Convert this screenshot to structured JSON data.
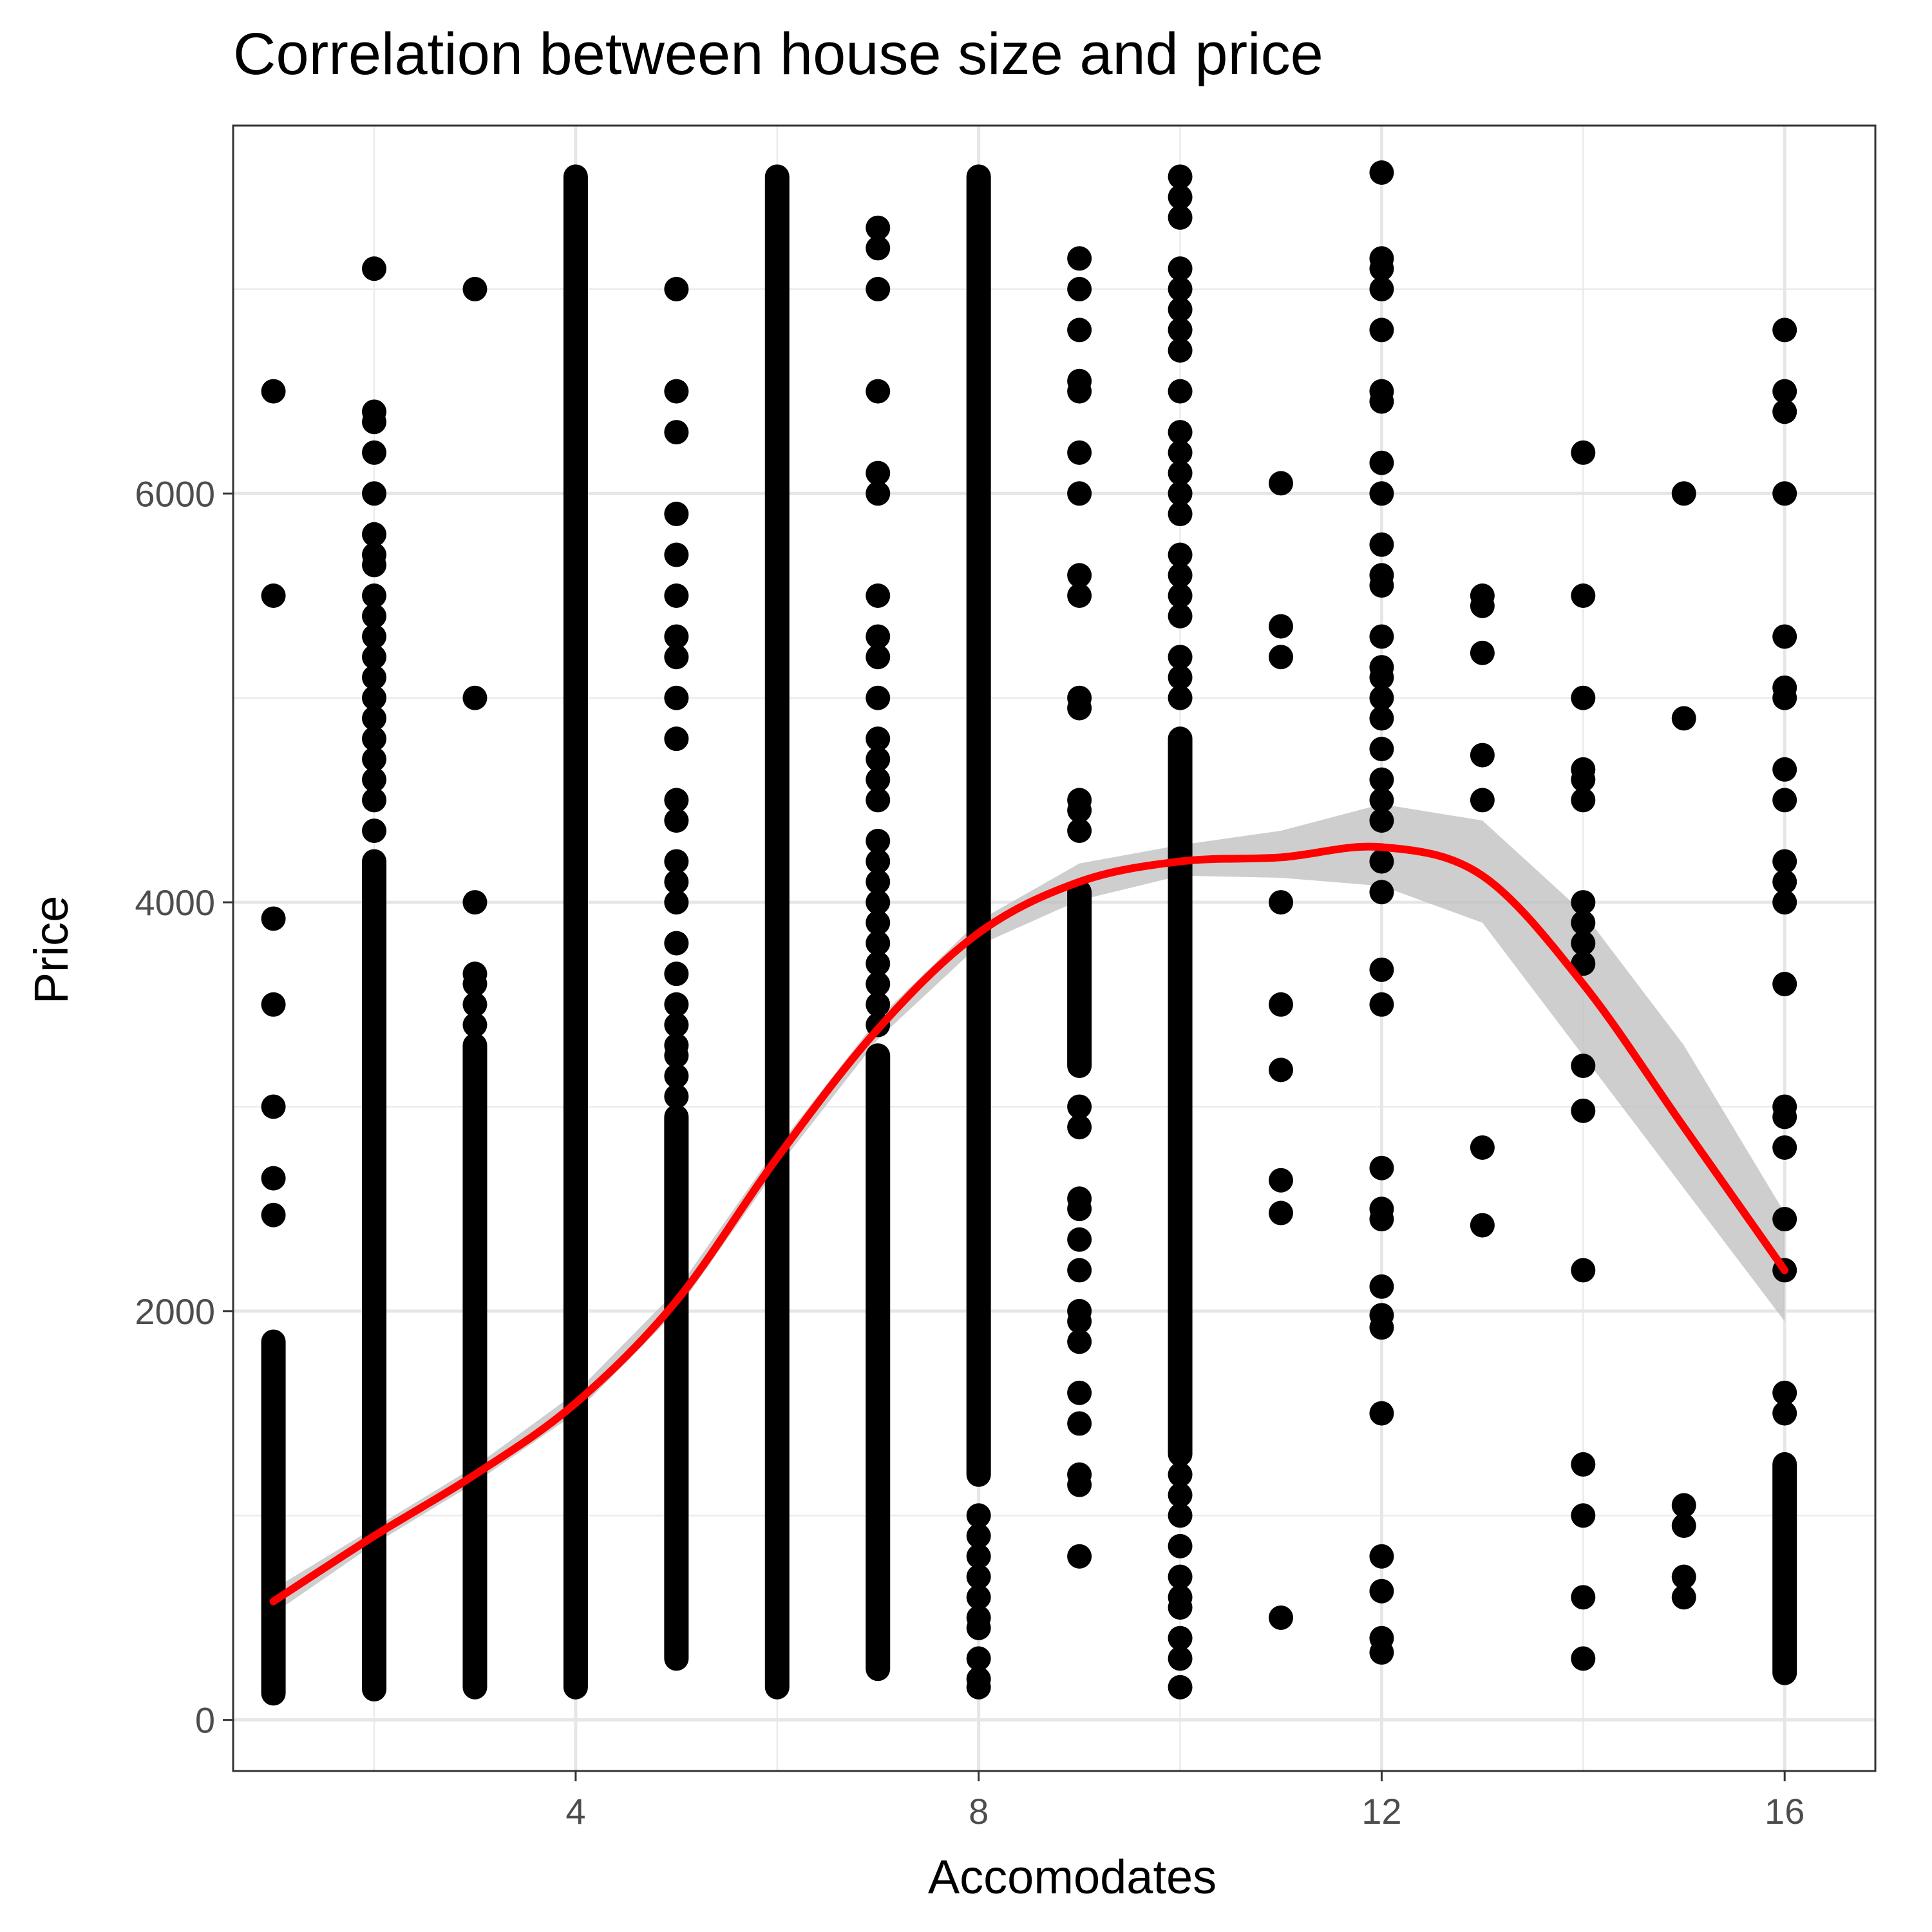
{
  "chart_data": {
    "type": "scatter",
    "title": "Correlation between house size and price",
    "xlabel": "Accomodates",
    "ylabel": "Price",
    "xlim": [
      0.6,
      16.9
    ],
    "ylim": [
      -250,
      7800
    ],
    "x_ticks": [
      {
        "value": 4,
        "label": "4"
      },
      {
        "value": 8,
        "label": "8"
      },
      {
        "value": 12,
        "label": "12"
      },
      {
        "value": 16,
        "label": "16"
      }
    ],
    "y_ticks": [
      {
        "value": 0,
        "label": "0"
      },
      {
        "value": 2000,
        "label": "2000"
      },
      {
        "value": 4000,
        "label": "4000"
      },
      {
        "value": 6000,
        "label": "6000"
      }
    ],
    "x_minor_grid": [
      2,
      6,
      10,
      14
    ],
    "y_minor_grid": [
      1000,
      3000,
      5000,
      7000
    ],
    "grid": true,
    "point_color": "#000000",
    "theme": "bw",
    "columns": [
      {
        "x": 1,
        "dense_range": [
          130,
          1850
        ],
        "points": [
          2470,
          2650,
          3000,
          3500,
          3920,
          5500,
          6500
        ]
      },
      {
        "x": 2,
        "dense_range": [
          150,
          4200
        ],
        "points": [
          4350,
          4500,
          4600,
          4700,
          4800,
          4900,
          5000,
          5100,
          5200,
          5300,
          5400,
          5500,
          5650,
          5700,
          5800,
          6000,
          6200,
          6350,
          6400,
          7100
        ]
      },
      {
        "x": 3,
        "dense_range": [
          160,
          3300
        ],
        "points": [
          3400,
          3500,
          3600,
          3650,
          4000,
          5000,
          7000
        ]
      },
      {
        "x": 4,
        "dense_range": [
          160,
          7550
        ],
        "points": []
      },
      {
        "x": 5,
        "dense_range": [
          300,
          2950
        ],
        "points": [
          3050,
          3150,
          3250,
          3300,
          3400,
          3500,
          3650,
          3800,
          4000,
          4100,
          4200,
          4400,
          4500,
          4800,
          5000,
          5200,
          5300,
          5500,
          5700,
          5900,
          6300,
          6500,
          7000
        ]
      },
      {
        "x": 6,
        "dense_range": [
          160,
          7550
        ],
        "points": []
      },
      {
        "x": 7,
        "dense_range": [
          250,
          3250
        ],
        "points": [
          3400,
          3500,
          3600,
          3700,
          3800,
          3900,
          4000,
          4100,
          4200,
          4300,
          4500,
          4600,
          4700,
          4800,
          5000,
          5200,
          5300,
          5500,
          6000,
          6100,
          6500,
          7000,
          7200,
          7300
        ]
      },
      {
        "x": 8,
        "dense_range": [
          1200,
          7550
        ],
        "points": [
          160,
          200,
          300,
          450,
          500,
          600,
          700,
          800,
          900,
          1000
        ]
      },
      {
        "x": 9,
        "dense_range": [
          3200,
          4050
        ],
        "points": [
          800,
          1150,
          1200,
          1450,
          1600,
          1850,
          1950,
          2000,
          2200,
          2350,
          2500,
          2550,
          2900,
          3000,
          4350,
          4450,
          4500,
          4950,
          5000,
          5500,
          5600,
          6000,
          6200,
          6500,
          6550,
          6800,
          7000,
          7150
        ]
      },
      {
        "x": 10,
        "dense_range": [
          1300,
          4800
        ],
        "points": [
          160,
          300,
          400,
          550,
          600,
          700,
          850,
          1000,
          1100,
          1200,
          5000,
          5100,
          5200,
          5400,
          5500,
          5600,
          5700,
          5900,
          6000,
          6100,
          6200,
          6300,
          6500,
          6700,
          6800,
          6900,
          7000,
          7100,
          7350,
          7450,
          7550
        ]
      },
      {
        "x": 11,
        "points": [
          500,
          2480,
          2640,
          3180,
          3500,
          4000,
          5200,
          5350,
          6050
        ]
      },
      {
        "x": 12,
        "points": [
          330,
          400,
          630,
          800,
          1500,
          1920,
          1980,
          2120,
          2450,
          2500,
          2700,
          3500,
          3670,
          4050,
          4200,
          4400,
          4500,
          4600,
          4750,
          4900,
          5000,
          5100,
          5150,
          5300,
          5550,
          5600,
          5750,
          6000,
          6150,
          6450,
          6500,
          6800,
          7000,
          7100,
          7150,
          7570
        ]
      },
      {
        "x": 13,
        "points": [
          2420,
          2800,
          4500,
          4720,
          5220,
          5450,
          5500
        ]
      },
      {
        "x": 14,
        "points": [
          300,
          600,
          1000,
          1250,
          2200,
          2980,
          3200,
          3700,
          3800,
          3900,
          4000,
          4500,
          4600,
          4650,
          5000,
          5500,
          6200
        ]
      },
      {
        "x": 15,
        "points": [
          600,
          700,
          950,
          1050,
          4900,
          6000
        ]
      },
      {
        "x": 16,
        "dense_range": [
          230,
          1250
        ],
        "points": [
          1500,
          1600,
          2200,
          2450,
          2800,
          2950,
          3000,
          3600,
          4000,
          4100,
          4200,
          4500,
          4650,
          5000,
          5050,
          5300,
          6000,
          6400,
          6500,
          6800
        ]
      }
    ],
    "smooth": {
      "color": "#ff0000",
      "band_color": "#bebebe",
      "x": [
        1,
        2,
        3,
        4,
        5,
        6,
        7,
        8,
        9,
        10,
        11,
        12,
        13,
        14,
        15,
        16
      ],
      "y": [
        580,
        900,
        1200,
        1550,
        2050,
        2750,
        3380,
        3850,
        4100,
        4200,
        4220,
        4270,
        4130,
        3600,
        2900,
        2200
      ],
      "lower": [
        520,
        860,
        1160,
        1500,
        2000,
        2700,
        3330,
        3790,
        4010,
        4130,
        4120,
        4080,
        3900,
        3250,
        2600,
        1950
      ],
      "upper": [
        640,
        940,
        1240,
        1600,
        2100,
        2800,
        3430,
        3910,
        4190,
        4280,
        4350,
        4480,
        4400,
        3950,
        3300,
        2480
      ]
    }
  }
}
